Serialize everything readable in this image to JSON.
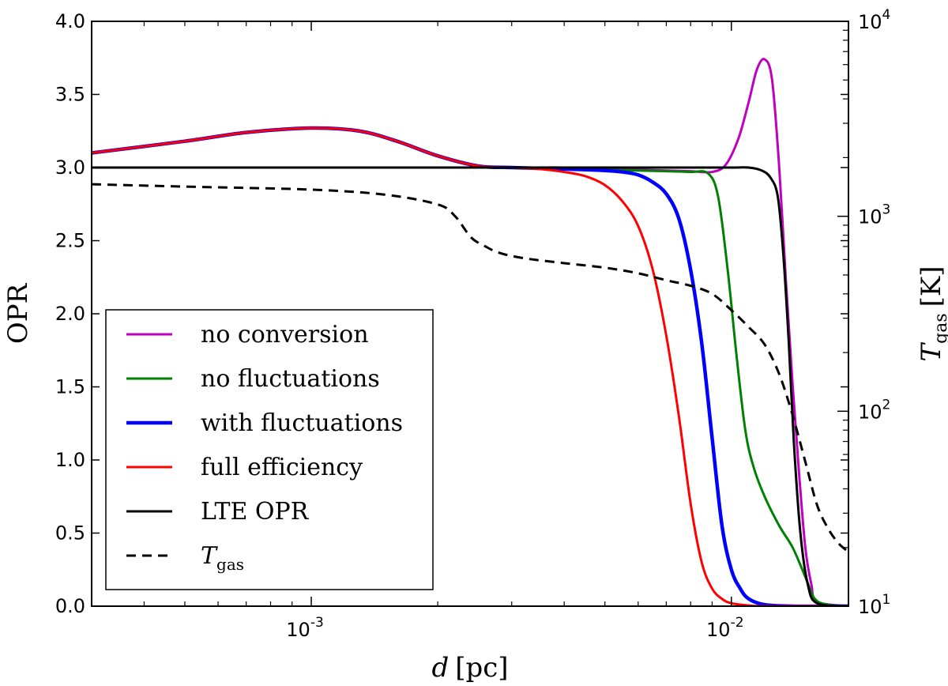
{
  "chart_data": {
    "type": "line",
    "x_scale": "log",
    "xlim": [
      0.0003,
      0.019
    ],
    "ylim": [
      0,
      4.0
    ],
    "y2_scale": "log",
    "y2lim": [
      10,
      10000
    ],
    "xlabel": "d [pc]",
    "xlabel_main": "d",
    "xlabel_unit": "[pc]",
    "ylabel": "OPR",
    "y2label": "T_gas [K]",
    "y2label_main": "T",
    "y2label_sub": "gas",
    "y2label_unit": "[K]",
    "y_ticks": [
      0.0,
      0.5,
      1.0,
      1.5,
      2.0,
      2.5,
      3.0,
      3.5,
      4.0
    ],
    "y_tick_labels": [
      "0.0",
      "0.5",
      "1.0",
      "1.5",
      "2.0",
      "2.5",
      "3.0",
      "3.5",
      "4.0"
    ],
    "x_ticks": [
      0.001,
      0.01
    ],
    "x_tick_labels": [
      {
        "base": "10",
        "exp": "-3"
      },
      {
        "base": "10",
        "exp": "-2"
      }
    ],
    "y2_ticks": [
      10,
      100,
      1000,
      10000
    ],
    "y2_tick_labels": [
      {
        "base": "10",
        "exp": "1"
      },
      {
        "base": "10",
        "exp": "2"
      },
      {
        "base": "10",
        "exp": "3"
      },
      {
        "base": "10",
        "exp": "4"
      }
    ],
    "legend_position": "lower-left",
    "series": [
      {
        "name": "no conversion",
        "color": "#bf00bf",
        "dash": false,
        "axis": "left",
        "x": [
          0.0003,
          0.0005,
          0.0007,
          0.001,
          0.0013,
          0.0016,
          0.002,
          0.0025,
          0.003,
          0.004,
          0.005,
          0.006,
          0.007,
          0.008,
          0.009,
          0.0097,
          0.0104,
          0.011,
          0.0115,
          0.012,
          0.0125,
          0.013,
          0.0135,
          0.014,
          0.0145,
          0.015,
          0.0155,
          0.016,
          0.019
        ],
        "y": [
          3.1,
          3.18,
          3.24,
          3.27,
          3.25,
          3.18,
          3.08,
          3.01,
          3.0,
          3.0,
          2.99,
          2.985,
          2.98,
          2.975,
          2.97,
          3.02,
          3.2,
          3.45,
          3.67,
          3.74,
          3.6,
          3.0,
          2.2,
          1.5,
          0.9,
          0.4,
          0.15,
          0.03,
          0.0
        ]
      },
      {
        "name": "no fluctuations",
        "color": "#008000",
        "dash": false,
        "axis": "left",
        "x": [
          0.0003,
          0.0005,
          0.0007,
          0.001,
          0.0013,
          0.0016,
          0.002,
          0.0025,
          0.003,
          0.004,
          0.005,
          0.006,
          0.007,
          0.008,
          0.0088,
          0.0093,
          0.0098,
          0.0103,
          0.0108,
          0.0113,
          0.012,
          0.013,
          0.014,
          0.015,
          0.0158,
          0.017,
          0.019
        ],
        "y": [
          3.1,
          3.18,
          3.24,
          3.27,
          3.25,
          3.18,
          3.08,
          3.01,
          3.0,
          2.99,
          2.985,
          2.98,
          2.975,
          2.97,
          2.96,
          2.8,
          2.3,
          1.7,
          1.2,
          0.95,
          0.75,
          0.55,
          0.4,
          0.2,
          0.05,
          0.01,
          0.0
        ]
      },
      {
        "name": "with fluctuations",
        "color": "#0000ff",
        "dash": false,
        "axis": "left",
        "x": [
          0.0003,
          0.0005,
          0.0007,
          0.001,
          0.0013,
          0.0016,
          0.002,
          0.0025,
          0.003,
          0.004,
          0.005,
          0.0055,
          0.006,
          0.0065,
          0.007,
          0.0075,
          0.008,
          0.0085,
          0.009,
          0.0095,
          0.01,
          0.0105,
          0.011,
          0.012,
          0.014,
          0.019
        ],
        "y": [
          3.1,
          3.18,
          3.24,
          3.27,
          3.25,
          3.18,
          3.08,
          3.01,
          3.0,
          2.99,
          2.98,
          2.97,
          2.95,
          2.9,
          2.82,
          2.65,
          2.3,
          1.8,
          1.15,
          0.55,
          0.25,
          0.12,
          0.05,
          0.01,
          0.0,
          0.0
        ]
      },
      {
        "name": "full efficiency",
        "color": "#ff0000",
        "dash": false,
        "axis": "left",
        "x": [
          0.0003,
          0.0005,
          0.0007,
          0.001,
          0.0013,
          0.0016,
          0.002,
          0.0025,
          0.003,
          0.0035,
          0.004,
          0.0045,
          0.005,
          0.0055,
          0.006,
          0.0065,
          0.007,
          0.0075,
          0.008,
          0.0085,
          0.009,
          0.0095,
          0.01,
          0.011,
          0.012,
          0.019
        ],
        "y": [
          3.1,
          3.18,
          3.24,
          3.27,
          3.25,
          3.18,
          3.08,
          3.01,
          3.0,
          2.99,
          2.97,
          2.94,
          2.88,
          2.77,
          2.6,
          2.3,
          1.85,
          1.3,
          0.7,
          0.3,
          0.12,
          0.05,
          0.02,
          0.005,
          0.0,
          0.0
        ]
      },
      {
        "name": "LTE OPR",
        "color": "#000000",
        "dash": false,
        "axis": "left",
        "x": [
          0.0003,
          0.002,
          0.004,
          0.008,
          0.01,
          0.011,
          0.0118,
          0.0124,
          0.0129,
          0.0133,
          0.0137,
          0.0141,
          0.0146,
          0.0152,
          0.016,
          0.019
        ],
        "y": [
          3.0,
          3.0,
          3.0,
          3.0,
          3.0,
          3.0,
          2.98,
          2.93,
          2.8,
          2.4,
          1.8,
          1.1,
          0.5,
          0.15,
          0.02,
          0.0
        ]
      },
      {
        "name": "T_gas",
        "label_main": "T",
        "label_sub": "gas",
        "color": "#000000",
        "dash": true,
        "axis": "right",
        "x": [
          0.0003,
          0.0005,
          0.001,
          0.0015,
          0.002,
          0.0022,
          0.0024,
          0.0026,
          0.0028,
          0.0032,
          0.004,
          0.005,
          0.006,
          0.007,
          0.008,
          0.009,
          0.01,
          0.011,
          0.012,
          0.013,
          0.014,
          0.015,
          0.016,
          0.017,
          0.018,
          0.019
        ],
        "y": [
          1460,
          1420,
          1370,
          1290,
          1150,
          1000,
          780,
          700,
          650,
          610,
          575,
          545,
          510,
          470,
          440,
          400,
          330,
          270,
          220,
          155,
          95,
          55,
          33,
          25,
          21,
          19
        ]
      }
    ]
  }
}
